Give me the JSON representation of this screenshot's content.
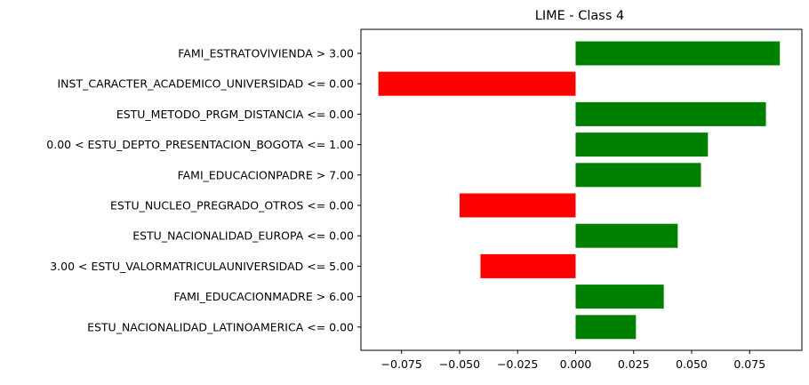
{
  "chart_data": {
    "type": "bar",
    "orientation": "horizontal",
    "title": "LIME - Class 4",
    "xlabel": "",
    "ylabel": "",
    "xlim": [
      -0.0925,
      0.0975
    ],
    "xticks": [
      -0.075,
      -0.05,
      -0.025,
      0.0,
      0.025,
      0.05,
      0.075
    ],
    "xtick_labels": [
      "−0.075",
      "−0.050",
      "−0.025",
      "0.000",
      "0.025",
      "0.050",
      "0.075"
    ],
    "grid": false,
    "positive_color": "#008000",
    "negative_color": "#ff0000",
    "categories": [
      "FAMI_ESTRATOVIVIENDA > 3.00",
      "INST_CARACTER_ACADEMICO_UNIVERSIDAD <= 0.00",
      "ESTU_METODO_PRGM_DISTANCIA <= 0.00",
      "0.00 < ESTU_DEPTO_PRESENTACION_BOGOTA <= 1.00",
      "FAMI_EDUCACIONPADRE > 7.00",
      "ESTU_NUCLEO_PREGRADO_OTROS <= 0.00",
      "ESTU_NACIONALIDAD_EUROPA <= 0.00",
      "3.00 < ESTU_VALORMATRICULAUNIVERSIDAD <= 5.00",
      "FAMI_EDUCACIONMADRE > 6.00",
      "ESTU_NACIONALIDAD_LATINOAMERICA <= 0.00"
    ],
    "values": [
      0.088,
      -0.085,
      0.082,
      0.057,
      0.054,
      -0.05,
      0.044,
      -0.041,
      0.038,
      0.026
    ]
  }
}
